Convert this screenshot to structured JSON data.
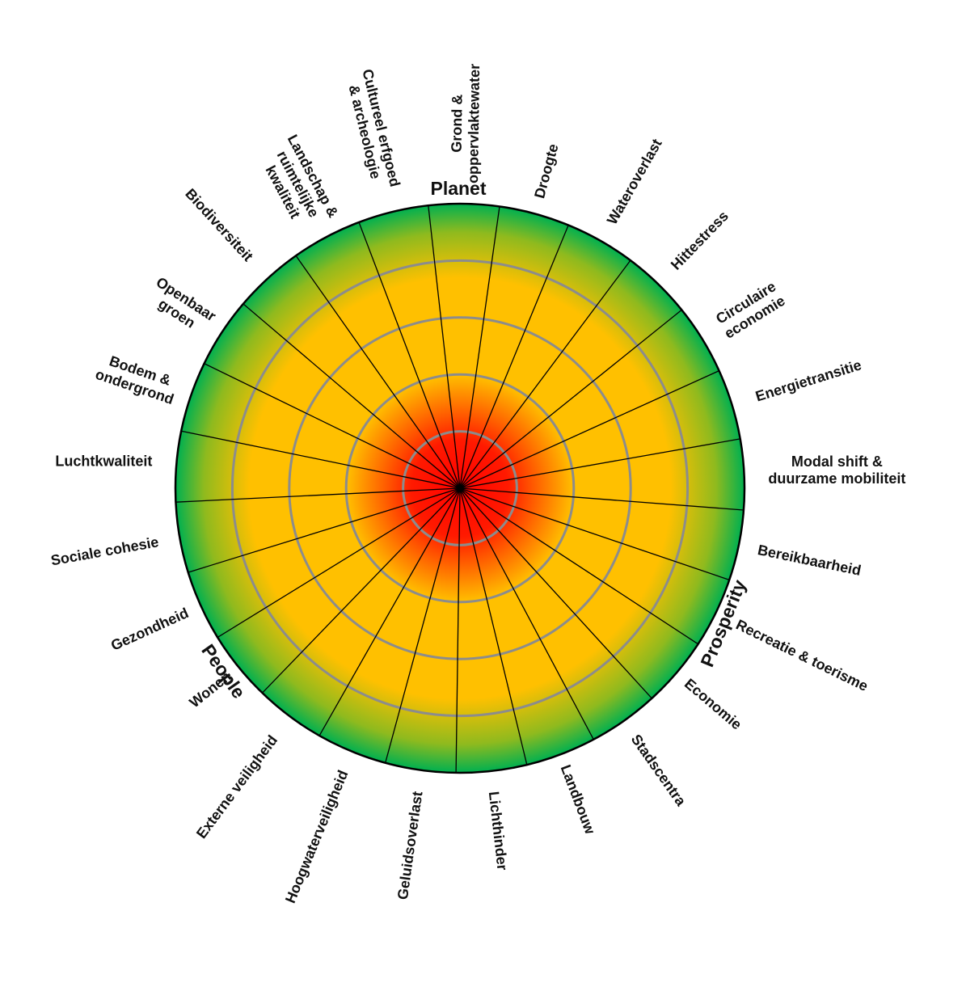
{
  "groups": {
    "planet": "Planet",
    "prosperity": "Prosperity",
    "people": "People"
  },
  "sectors": [
    {
      "lines": [
        "Droogte"
      ]
    },
    {
      "lines": [
        "Wateroverlast"
      ]
    },
    {
      "lines": [
        "Hittestress"
      ]
    },
    {
      "lines": [
        "Circulaire",
        "economie"
      ]
    },
    {
      "lines": [
        "Energietransitie"
      ]
    },
    {
      "lines": [
        "Modal shift &",
        "duurzame mobiliteit"
      ]
    },
    {
      "lines": [
        "Bereikbaarheid"
      ]
    },
    {
      "lines": [
        "Recreatie & toerisme"
      ]
    },
    {
      "lines": [
        "Economie"
      ]
    },
    {
      "lines": [
        "Stadscentra"
      ]
    },
    {
      "lines": [
        "Landbouw"
      ]
    },
    {
      "lines": [
        "Lichthinder"
      ]
    },
    {
      "lines": [
        "Geluidsoverlast"
      ]
    },
    {
      "lines": [
        "Hoogwaterveiligheid"
      ]
    },
    {
      "lines": [
        "Externe veiligheid"
      ]
    },
    {
      "lines": [
        "Wonen"
      ]
    },
    {
      "lines": [
        "Gezondheid"
      ]
    },
    {
      "lines": [
        "Sociale cohesie"
      ]
    },
    {
      "lines": [
        "Luchtkwaliteit"
      ]
    },
    {
      "lines": [
        "Bodem &",
        "ondergrond"
      ]
    },
    {
      "lines": [
        "Openbaar",
        "groen"
      ]
    },
    {
      "lines": [
        "Biodiversiteit"
      ]
    },
    {
      "lines": [
        "Landschap &",
        "ruimtelijke",
        "kwaliteit"
      ]
    },
    {
      "lines": [
        "Cultureel erfgoed",
        "& archeologie"
      ]
    },
    {
      "lines": [
        "Grond &",
        "oppervlaktewater"
      ]
    }
  ],
  "colors": {
    "center": "#ff0000",
    "middle": "#ffc000",
    "outer": "#00b050",
    "ring_line": "#8c8c8c",
    "spoke": "#000000"
  }
}
